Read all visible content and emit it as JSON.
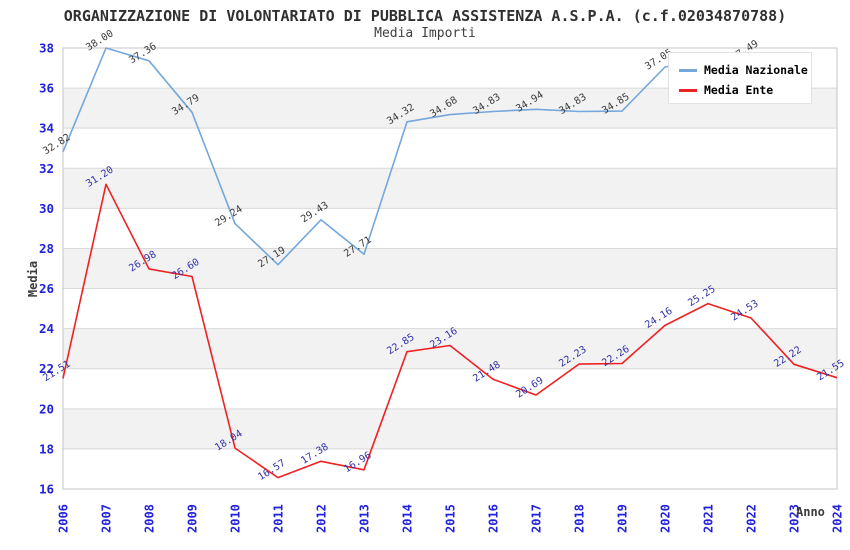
{
  "title": "ORGANIZZAZIONE DI VOLONTARIATO DI PUBBLICA ASSISTENZA A.S.P.A. (c.f.02034870788)",
  "subtitle": "Media Importi",
  "axes": {
    "y_label": "Media",
    "x_label": "Anno",
    "y_ticks": [
      16,
      18,
      20,
      22,
      24,
      26,
      28,
      30,
      32,
      34,
      36,
      38
    ],
    "x_ticks": [
      "2006",
      "2007",
      "2008",
      "2009",
      "2010",
      "2011",
      "2012",
      "2013",
      "2014",
      "2015",
      "2016",
      "2017",
      "2018",
      "2019",
      "2020",
      "2021",
      "2022",
      "2023",
      "2024"
    ]
  },
  "legend": {
    "items": [
      {
        "label": "Media Nazionale",
        "color": "#74a7dc"
      },
      {
        "label": "Media Ente",
        "color": "#ee2222"
      }
    ]
  },
  "colors": {
    "tick_text": "#2222dd",
    "grid_line": "#d9d9d9",
    "band_fill": "#f2f2f2",
    "plot_border": "#c4c4c4",
    "title_text": "#303030"
  },
  "chart_data": {
    "type": "line",
    "x": [
      2006,
      2007,
      2008,
      2009,
      2010,
      2011,
      2012,
      2013,
      2014,
      2015,
      2016,
      2017,
      2018,
      2019,
      2020,
      2021,
      2022,
      2023,
      2024
    ],
    "ylim": [
      16,
      38
    ],
    "grid": true,
    "legend_position": "top-right",
    "series": [
      {
        "name": "Media Nazionale",
        "color": "#74a7dc",
        "label_color": "#3c3c3c",
        "values": [
          32.82,
          38.0,
          37.36,
          34.79,
          29.24,
          27.19,
          29.43,
          27.71,
          34.32,
          34.68,
          34.83,
          34.94,
          34.83,
          34.85,
          37.05,
          37.46,
          37.49,
          null,
          null
        ],
        "hidden_label_indices": [
          15
        ]
      },
      {
        "name": "Media Ente",
        "color": "#ee2222",
        "label_color": "#3333aa",
        "values": [
          21.51,
          31.2,
          26.98,
          26.6,
          18.04,
          16.57,
          17.38,
          16.96,
          22.85,
          23.16,
          21.48,
          20.69,
          22.23,
          22.26,
          24.16,
          25.25,
          24.53,
          22.22,
          21.55
        ],
        "hidden_label_indices": []
      }
    ]
  }
}
